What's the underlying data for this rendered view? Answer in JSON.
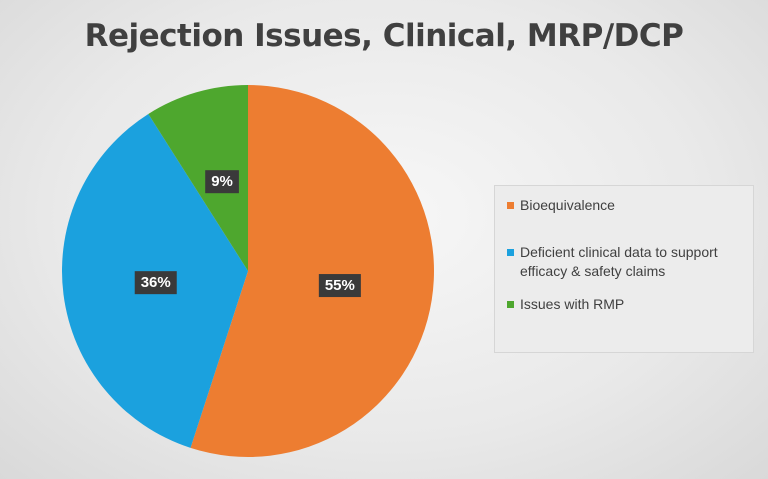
{
  "chart_data": {
    "type": "pie",
    "title": "Rejection Issues, Clinical, MRP/DCP",
    "slices": [
      {
        "label": "Bioequivalence",
        "value": 55,
        "display": "55%",
        "color": "#ED7D31"
      },
      {
        "label": "Deficient clinical data to support efficacy & safety claims",
        "value": 36,
        "display": "36%",
        "color": "#1BA1DE"
      },
      {
        "label": "Issues with RMP",
        "value": 9,
        "display": "9%",
        "color": "#4EA72E"
      }
    ],
    "legend_position": "right"
  }
}
